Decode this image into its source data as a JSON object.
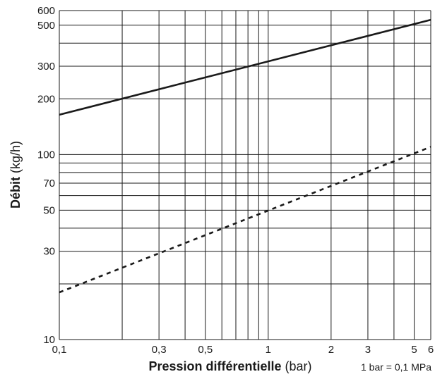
{
  "chart_data": {
    "type": "line",
    "title": "",
    "x_scale": "log",
    "y_scale": "log",
    "xlim": [
      0.1,
      6
    ],
    "ylim": [
      10,
      600
    ],
    "xlabel_bold": "Pression différentielle",
    "xlabel_unit": "(bar)",
    "ylabel_bold": "Débit",
    "ylabel_unit": "(kg/h)",
    "note": "1 bar = 0,1 MPa",
    "x_ticks": [
      {
        "value": 0.1,
        "label": "0,1"
      },
      {
        "value": 0.3,
        "label": "0,3"
      },
      {
        "value": 0.5,
        "label": "0,5"
      },
      {
        "value": 1,
        "label": "1"
      },
      {
        "value": 2,
        "label": "2"
      },
      {
        "value": 3,
        "label": "3"
      },
      {
        "value": 5,
        "label": "5"
      },
      {
        "value": 6,
        "label": "6"
      }
    ],
    "y_ticks": [
      {
        "value": 10,
        "label": "10"
      },
      {
        "value": 30,
        "label": "30"
      },
      {
        "value": 50,
        "label": "50"
      },
      {
        "value": 70,
        "label": "70"
      },
      {
        "value": 100,
        "label": "100"
      },
      {
        "value": 200,
        "label": "200"
      },
      {
        "value": 300,
        "label": "300"
      },
      {
        "value": 500,
        "label": "500"
      },
      {
        "value": 600,
        "label": "600"
      }
    ],
    "x_grid": [
      0.1,
      0.2,
      0.3,
      0.4,
      0.5,
      0.6,
      0.7,
      0.8,
      0.9,
      1,
      2,
      3,
      4,
      5,
      6
    ],
    "y_grid": [
      10,
      20,
      30,
      40,
      50,
      60,
      70,
      80,
      90,
      100,
      200,
      300,
      400,
      500,
      600
    ],
    "series": [
      {
        "style": "solid",
        "color": "#1a1a1a",
        "x": [
          0.1,
          6
        ],
        "y": [
          164,
          535
        ]
      },
      {
        "style": "dashed",
        "color": "#1a1a1a",
        "x": [
          0.1,
          6
        ],
        "y": [
          18,
          110
        ]
      }
    ]
  }
}
